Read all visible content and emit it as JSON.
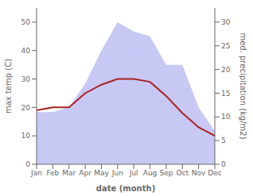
{
  "chart_data": {
    "type": "line",
    "xlabel": "date (month)",
    "ylabel": "max temp (C)",
    "y2label": "med. precipitation (kg/m2)",
    "categories": [
      "Jan",
      "Feb",
      "Mar",
      "Apr",
      "May",
      "Jun",
      "Jul",
      "Aug",
      "Sep",
      "Oct",
      "Nov",
      "Dec"
    ],
    "series": [
      {
        "type": "area",
        "color": "#aaaaee",
        "axis": "y2",
        "values": [
          11,
          11,
          12,
          17,
          24,
          30,
          28,
          27,
          21,
          21,
          12,
          7
        ]
      },
      {
        "type": "line",
        "color": "#aa2222",
        "values": [
          19,
          20,
          20,
          25,
          28,
          30,
          30,
          29,
          24,
          18,
          13,
          10
        ]
      }
    ],
    "ylim": [
      0,
      55
    ],
    "yticks": [
      0,
      10,
      20,
      30,
      40,
      50
    ],
    "y2lim": [
      0,
      33
    ],
    "y2ticks": [
      0,
      5,
      10,
      15,
      20,
      25,
      30
    ],
    "grid": false
  }
}
